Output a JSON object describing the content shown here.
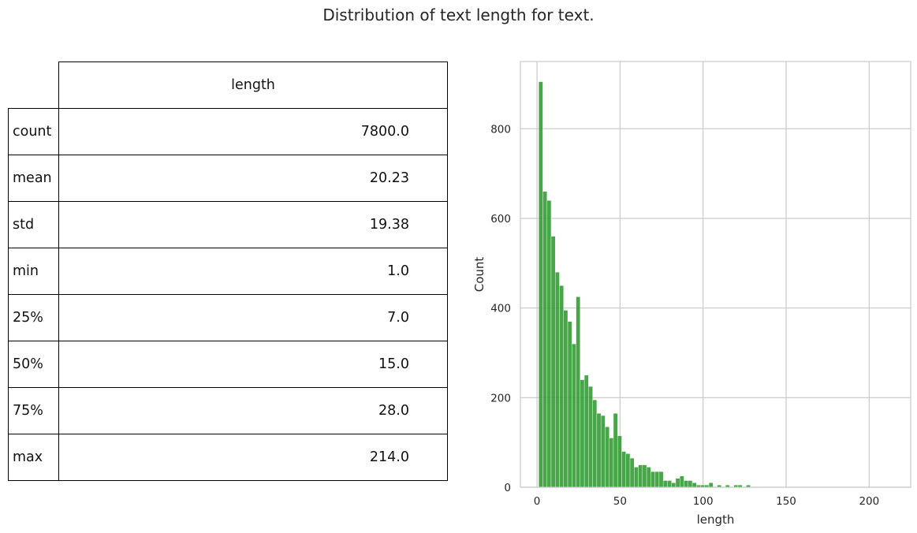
{
  "suptitle": "Distribution of text length for text.",
  "table": {
    "column_header": "length",
    "rows": [
      {
        "label": "count",
        "value": "7800.0"
      },
      {
        "label": "mean",
        "value": "20.23"
      },
      {
        "label": "std",
        "value": "19.38"
      },
      {
        "label": "min",
        "value": "1.0"
      },
      {
        "label": "25%",
        "value": "7.0"
      },
      {
        "label": "50%",
        "value": "15.0"
      },
      {
        "label": "75%",
        "value": "28.0"
      },
      {
        "label": "max",
        "value": "214.0"
      }
    ]
  },
  "chart_data": {
    "type": "bar",
    "subtype": "histogram",
    "xlabel": "length",
    "ylabel": "Count",
    "xlim": [
      -10,
      225
    ],
    "ylim": [
      0,
      950
    ],
    "xticks": [
      0,
      50,
      100,
      150,
      200
    ],
    "yticks": [
      0,
      200,
      400,
      600,
      800
    ],
    "grid": true,
    "bar_color": "#2e9a2e",
    "bin_width": 2.5,
    "bin_start": 1,
    "counts": [
      905,
      660,
      640,
      560,
      480,
      450,
      395,
      370,
      320,
      425,
      240,
      250,
      225,
      195,
      165,
      160,
      135,
      110,
      165,
      115,
      80,
      75,
      65,
      45,
      50,
      50,
      45,
      35,
      35,
      35,
      15,
      15,
      10,
      20,
      25,
      15,
      15,
      10,
      5,
      5,
      5,
      10,
      0,
      5,
      0,
      5,
      0,
      5,
      5,
      0,
      5,
      0,
      0,
      0,
      0,
      0,
      0,
      0,
      0,
      0,
      0,
      0,
      0,
      0,
      0,
      0,
      0,
      0,
      0,
      0,
      0,
      0,
      0,
      0,
      0,
      0,
      0,
      0,
      0,
      0,
      0,
      0,
      0,
      0,
      1
    ]
  }
}
